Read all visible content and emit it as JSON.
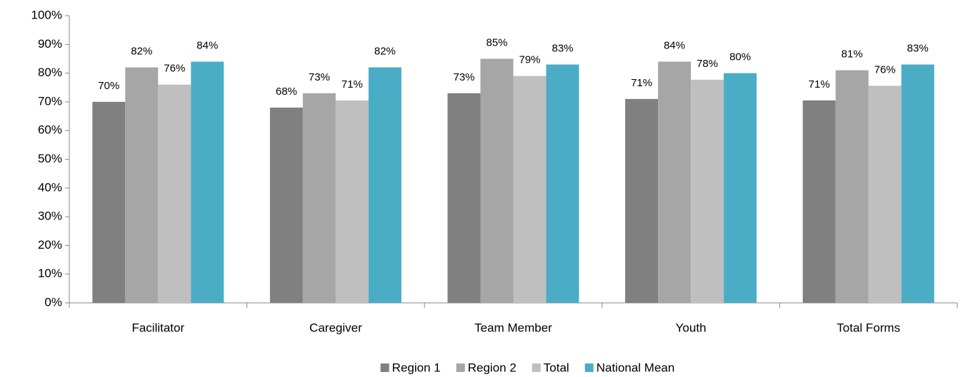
{
  "chart_data": {
    "type": "bar",
    "categories": [
      "Facilitator",
      "Caregiver",
      "Team Member",
      "Youth",
      "Total Forms"
    ],
    "series": [
      {
        "name": "Region 1",
        "color": "#808080",
        "values": [
          70,
          68,
          73,
          71,
          70.5
        ],
        "value_labels": [
          "70%",
          "68%",
          "73%",
          "71%",
          "71%"
        ]
      },
      {
        "name": "Region 2",
        "color": "#a6a6a6",
        "values": [
          82,
          73,
          85,
          84,
          81
        ],
        "value_labels": [
          "82%",
          "73%",
          "85%",
          "84%",
          "81%"
        ]
      },
      {
        "name": "Total",
        "color": "#bfbfbf",
        "values": [
          76,
          70.5,
          79,
          77.7,
          75.6
        ],
        "value_labels": [
          "76%",
          "71%",
          "79%",
          "78%",
          "76%"
        ]
      },
      {
        "name": "National Mean",
        "color": "#4bacc6",
        "values": [
          84,
          82,
          83,
          80,
          83
        ],
        "value_labels": [
          "84%",
          "82%",
          "83%",
          "80%",
          "83%"
        ]
      }
    ],
    "ylim": [
      0,
      100
    ],
    "yticks": [
      {
        "value": 0,
        "label": "0%"
      },
      {
        "value": 10,
        "label": "10%"
      },
      {
        "value": 20,
        "label": "20%"
      },
      {
        "value": 30,
        "label": "30%"
      },
      {
        "value": 40,
        "label": "40%"
      },
      {
        "value": 50,
        "label": "50%"
      },
      {
        "value": 60,
        "label": "60%"
      },
      {
        "value": 70,
        "label": "70%"
      },
      {
        "value": 80,
        "label": "80%"
      },
      {
        "value": 90,
        "label": "90%"
      },
      {
        "value": 100,
        "label": "100%"
      }
    ],
    "grid": false,
    "legend": "bottom"
  }
}
